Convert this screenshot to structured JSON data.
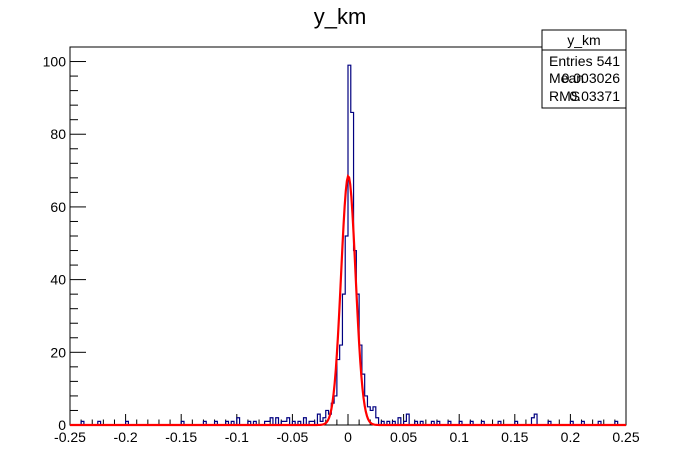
{
  "chart_data": {
    "type": "histogram",
    "title": "y_km",
    "xlabel": "",
    "ylabel": "",
    "xlim": [
      -0.25,
      0.25
    ],
    "ylim": [
      0,
      104
    ],
    "grid": false,
    "x_ticks": [
      "-0.25",
      "-0.2",
      "-0.15",
      "-0.1",
      "-0.05",
      "0",
      "0.05",
      "0.1",
      "0.15",
      "0.2",
      "0.25"
    ],
    "y_ticks": [
      "0",
      "20",
      "40",
      "60",
      "80",
      "100"
    ],
    "colors": {
      "histogram": "#000080",
      "fit": "#ff0000"
    },
    "bin_width": 0.0025,
    "histogram": [
      {
        "x": -0.24,
        "y": 1
      },
      {
        "x": -0.225,
        "y": 1
      },
      {
        "x": -0.2,
        "y": 1
      },
      {
        "x": -0.15,
        "y": 1
      },
      {
        "x": -0.13,
        "y": 1
      },
      {
        "x": -0.12,
        "y": 1
      },
      {
        "x": -0.11,
        "y": 1
      },
      {
        "x": -0.105,
        "y": 1
      },
      {
        "x": -0.1,
        "y": 2
      },
      {
        "x": -0.09,
        "y": 1
      },
      {
        "x": -0.085,
        "y": 1
      },
      {
        "x": -0.075,
        "y": 1
      },
      {
        "x": -0.0725,
        "y": 1
      },
      {
        "x": -0.07,
        "y": 2
      },
      {
        "x": -0.065,
        "y": 2
      },
      {
        "x": -0.06,
        "y": 1
      },
      {
        "x": -0.0575,
        "y": 1
      },
      {
        "x": -0.055,
        "y": 2
      },
      {
        "x": -0.05,
        "y": 1
      },
      {
        "x": -0.045,
        "y": 1
      },
      {
        "x": -0.04,
        "y": 2
      },
      {
        "x": -0.035,
        "y": 1
      },
      {
        "x": -0.0325,
        "y": 1
      },
      {
        "x": -0.0275,
        "y": 3
      },
      {
        "x": -0.025,
        "y": 1
      },
      {
        "x": -0.0225,
        "y": 2
      },
      {
        "x": -0.02,
        "y": 4
      },
      {
        "x": -0.0175,
        "y": 3
      },
      {
        "x": -0.015,
        "y": 6
      },
      {
        "x": -0.0125,
        "y": 8
      },
      {
        "x": -0.01,
        "y": 18
      },
      {
        "x": -0.0075,
        "y": 22
      },
      {
        "x": -0.005,
        "y": 36
      },
      {
        "x": -0.0025,
        "y": 52
      },
      {
        "x": 0.0,
        "y": 99
      },
      {
        "x": 0.0025,
        "y": 86
      },
      {
        "x": 0.005,
        "y": 48
      },
      {
        "x": 0.0075,
        "y": 36
      },
      {
        "x": 0.01,
        "y": 22
      },
      {
        "x": 0.0125,
        "y": 14
      },
      {
        "x": 0.015,
        "y": 8
      },
      {
        "x": 0.0175,
        "y": 5
      },
      {
        "x": 0.02,
        "y": 4
      },
      {
        "x": 0.0225,
        "y": 5
      },
      {
        "x": 0.025,
        "y": 2
      },
      {
        "x": 0.03,
        "y": 1
      },
      {
        "x": 0.035,
        "y": 1
      },
      {
        "x": 0.04,
        "y": 1
      },
      {
        "x": 0.045,
        "y": 2
      },
      {
        "x": 0.05,
        "y": 1
      },
      {
        "x": 0.0525,
        "y": 3
      },
      {
        "x": 0.06,
        "y": 1
      },
      {
        "x": 0.065,
        "y": 1
      },
      {
        "x": 0.075,
        "y": 1
      },
      {
        "x": 0.08,
        "y": 1
      },
      {
        "x": 0.09,
        "y": 1
      },
      {
        "x": 0.1,
        "y": 1
      },
      {
        "x": 0.11,
        "y": 1
      },
      {
        "x": 0.12,
        "y": 1
      },
      {
        "x": 0.135,
        "y": 1
      },
      {
        "x": 0.15,
        "y": 1
      },
      {
        "x": 0.165,
        "y": 2
      },
      {
        "x": 0.1675,
        "y": 3
      },
      {
        "x": 0.18,
        "y": 1
      },
      {
        "x": 0.2,
        "y": 1
      },
      {
        "x": 0.21,
        "y": 1
      },
      {
        "x": 0.225,
        "y": 1
      },
      {
        "x": 0.24,
        "y": 1
      }
    ],
    "fit": {
      "shape": "gaussian",
      "amplitude": 68.5,
      "mean": 0.0003,
      "sigma": 0.0065
    },
    "stats_box": {
      "title": "y_km",
      "rows": [
        {
          "label": "Entries",
          "value": "541"
        },
        {
          "label": "Mean",
          "value": "0.003026"
        },
        {
          "label": "RMS",
          "value": "0.03371"
        }
      ]
    }
  }
}
